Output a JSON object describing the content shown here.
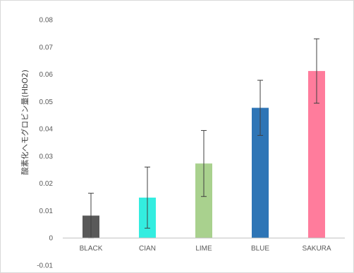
{
  "chart_data": {
    "type": "bar",
    "title": "",
    "xlabel": "",
    "ylabel": "酸素化ヘモグロビン量(HbO2)",
    "ylim": [
      -0.01,
      0.08
    ],
    "yticks": [
      -0.01,
      0,
      0.01,
      0.02,
      0.03,
      0.04,
      0.05,
      0.06,
      0.07,
      0.08
    ],
    "ytick_labels": [
      "-0.01",
      "0",
      "0.01",
      "0.02",
      "0.03",
      "0.04",
      "0.05",
      "0.06",
      "0.07",
      "0.08"
    ],
    "grid": false,
    "legend": "none",
    "categories": [
      "BLACK",
      "CIAN",
      "LIME",
      "BLUE",
      "SAKURA"
    ],
    "values": [
      0.0082,
      0.0148,
      0.0273,
      0.0477,
      0.0612
    ],
    "error": [
      0.0082,
      0.0112,
      0.0121,
      0.0101,
      0.0118
    ],
    "colors": [
      "#595959",
      "#33ede0",
      "#a9d18e",
      "#2e75b6",
      "#ff7c9c"
    ]
  }
}
